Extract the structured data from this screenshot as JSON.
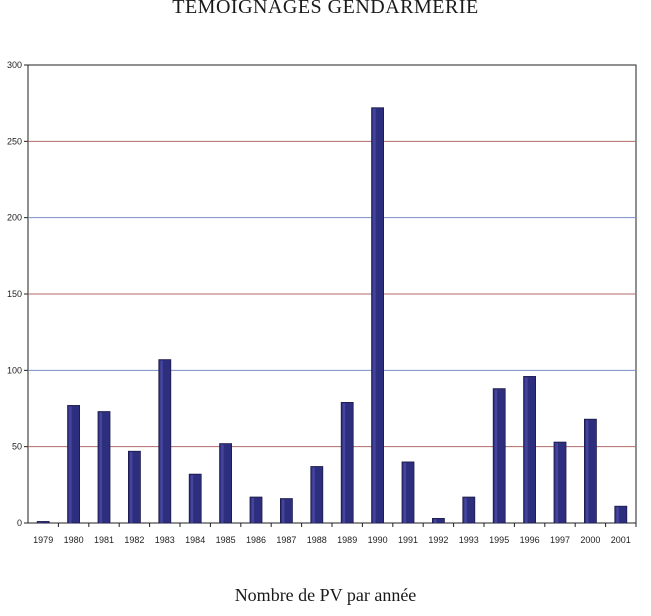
{
  "chart_data": {
    "type": "bar",
    "title": "TEMOIGNAGES GENDARMERIE",
    "caption": "Nombre de PV par année",
    "xlabel": "",
    "ylabel": "",
    "ylim": [
      0,
      300
    ],
    "yticks": [
      0,
      50,
      100,
      150,
      200,
      250,
      300
    ],
    "grid": true,
    "categories": [
      "1979",
      "1980",
      "1981",
      "1982",
      "1983",
      "1984",
      "1985",
      "1986",
      "1987",
      "1988",
      "1989",
      "1990",
      "1991",
      "1992",
      "1993",
      "1995",
      "1996",
      "1997",
      "2000",
      "2001"
    ],
    "values": [
      1,
      77,
      73,
      47,
      107,
      32,
      52,
      17,
      16,
      37,
      79,
      272,
      40,
      3,
      17,
      88,
      96,
      53,
      68,
      11
    ],
    "colors": {
      "bar": "#2e2e7e",
      "bar_highlight": "#5a5ab4",
      "grid_blue": "#7a8fc6",
      "grid_red": "#b06a6a",
      "axis": "#222222"
    }
  }
}
